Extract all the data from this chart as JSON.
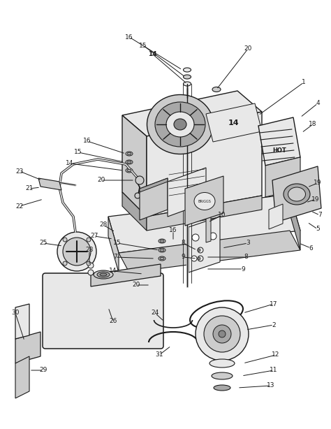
{
  "background_color": "#ffffff",
  "figsize": [
    4.74,
    6.14
  ],
  "dpi": 100,
  "line_color": "#1a1a1a",
  "fill_light": "#e8e8e8",
  "fill_mid": "#cccccc",
  "fill_dark": "#a8a8a8",
  "fill_vdark": "#888888"
}
